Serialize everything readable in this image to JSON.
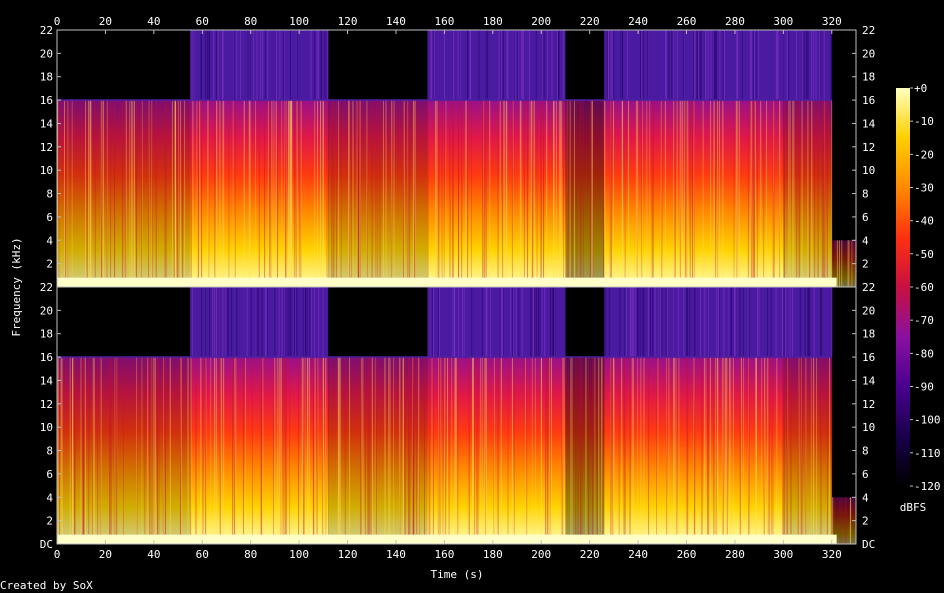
{
  "chart_data": {
    "type": "heatmap",
    "title": "",
    "xlabel": "Time (s)",
    "ylabel": "Frequency (kHz)",
    "xlim": [
      0,
      330
    ],
    "ylim": [
      0,
      22
    ],
    "x_ticks": [
      "0",
      "20",
      "40",
      "60",
      "80",
      "100",
      "120",
      "140",
      "160",
      "180",
      "200",
      "220",
      "240",
      "260",
      "280",
      "300",
      "320"
    ],
    "y_ticks_top": [
      "22",
      "20",
      "18",
      "16",
      "14",
      "12",
      "10",
      "8",
      "6",
      "4",
      "2"
    ],
    "y_ticks_bottom": [
      "22",
      "20",
      "18",
      "16",
      "14",
      "12",
      "10",
      "8",
      "6",
      "4",
      "2",
      "DC"
    ],
    "channels": 2,
    "cutoff_khz": 16,
    "segments": [
      {
        "start": 0,
        "end": 55,
        "band_above_cutoff": false,
        "level": "medium"
      },
      {
        "start": 55,
        "end": 112,
        "band_above_cutoff": true,
        "level": "loud"
      },
      {
        "start": 112,
        "end": 153,
        "band_above_cutoff": false,
        "level": "medium"
      },
      {
        "start": 153,
        "end": 210,
        "band_above_cutoff": true,
        "level": "loud"
      },
      {
        "start": 210,
        "end": 226,
        "band_above_cutoff": false,
        "level": "quiet"
      },
      {
        "start": 226,
        "end": 300,
        "band_above_cutoff": true,
        "level": "loud"
      },
      {
        "start": 300,
        "end": 320,
        "band_above_cutoff": true,
        "level": "medium"
      },
      {
        "start": 320,
        "end": 330,
        "band_above_cutoff": false,
        "level": "fade"
      }
    ],
    "colorbar": {
      "label": "dBFS",
      "range": [
        -120,
        0
      ],
      "ticks": [
        "+0",
        "-10",
        "-20",
        "-30",
        "-40",
        "-50",
        "-60",
        "-70",
        "-80",
        "-90",
        "-100",
        "-110",
        "-120"
      ],
      "colors": [
        "#000000",
        "#18004a",
        "#4a0090",
        "#8a10a0",
        "#c81040",
        "#ff3010",
        "#ff8a00",
        "#ffd000",
        "#ffffc0"
      ]
    },
    "credit": "Created by SoX"
  }
}
